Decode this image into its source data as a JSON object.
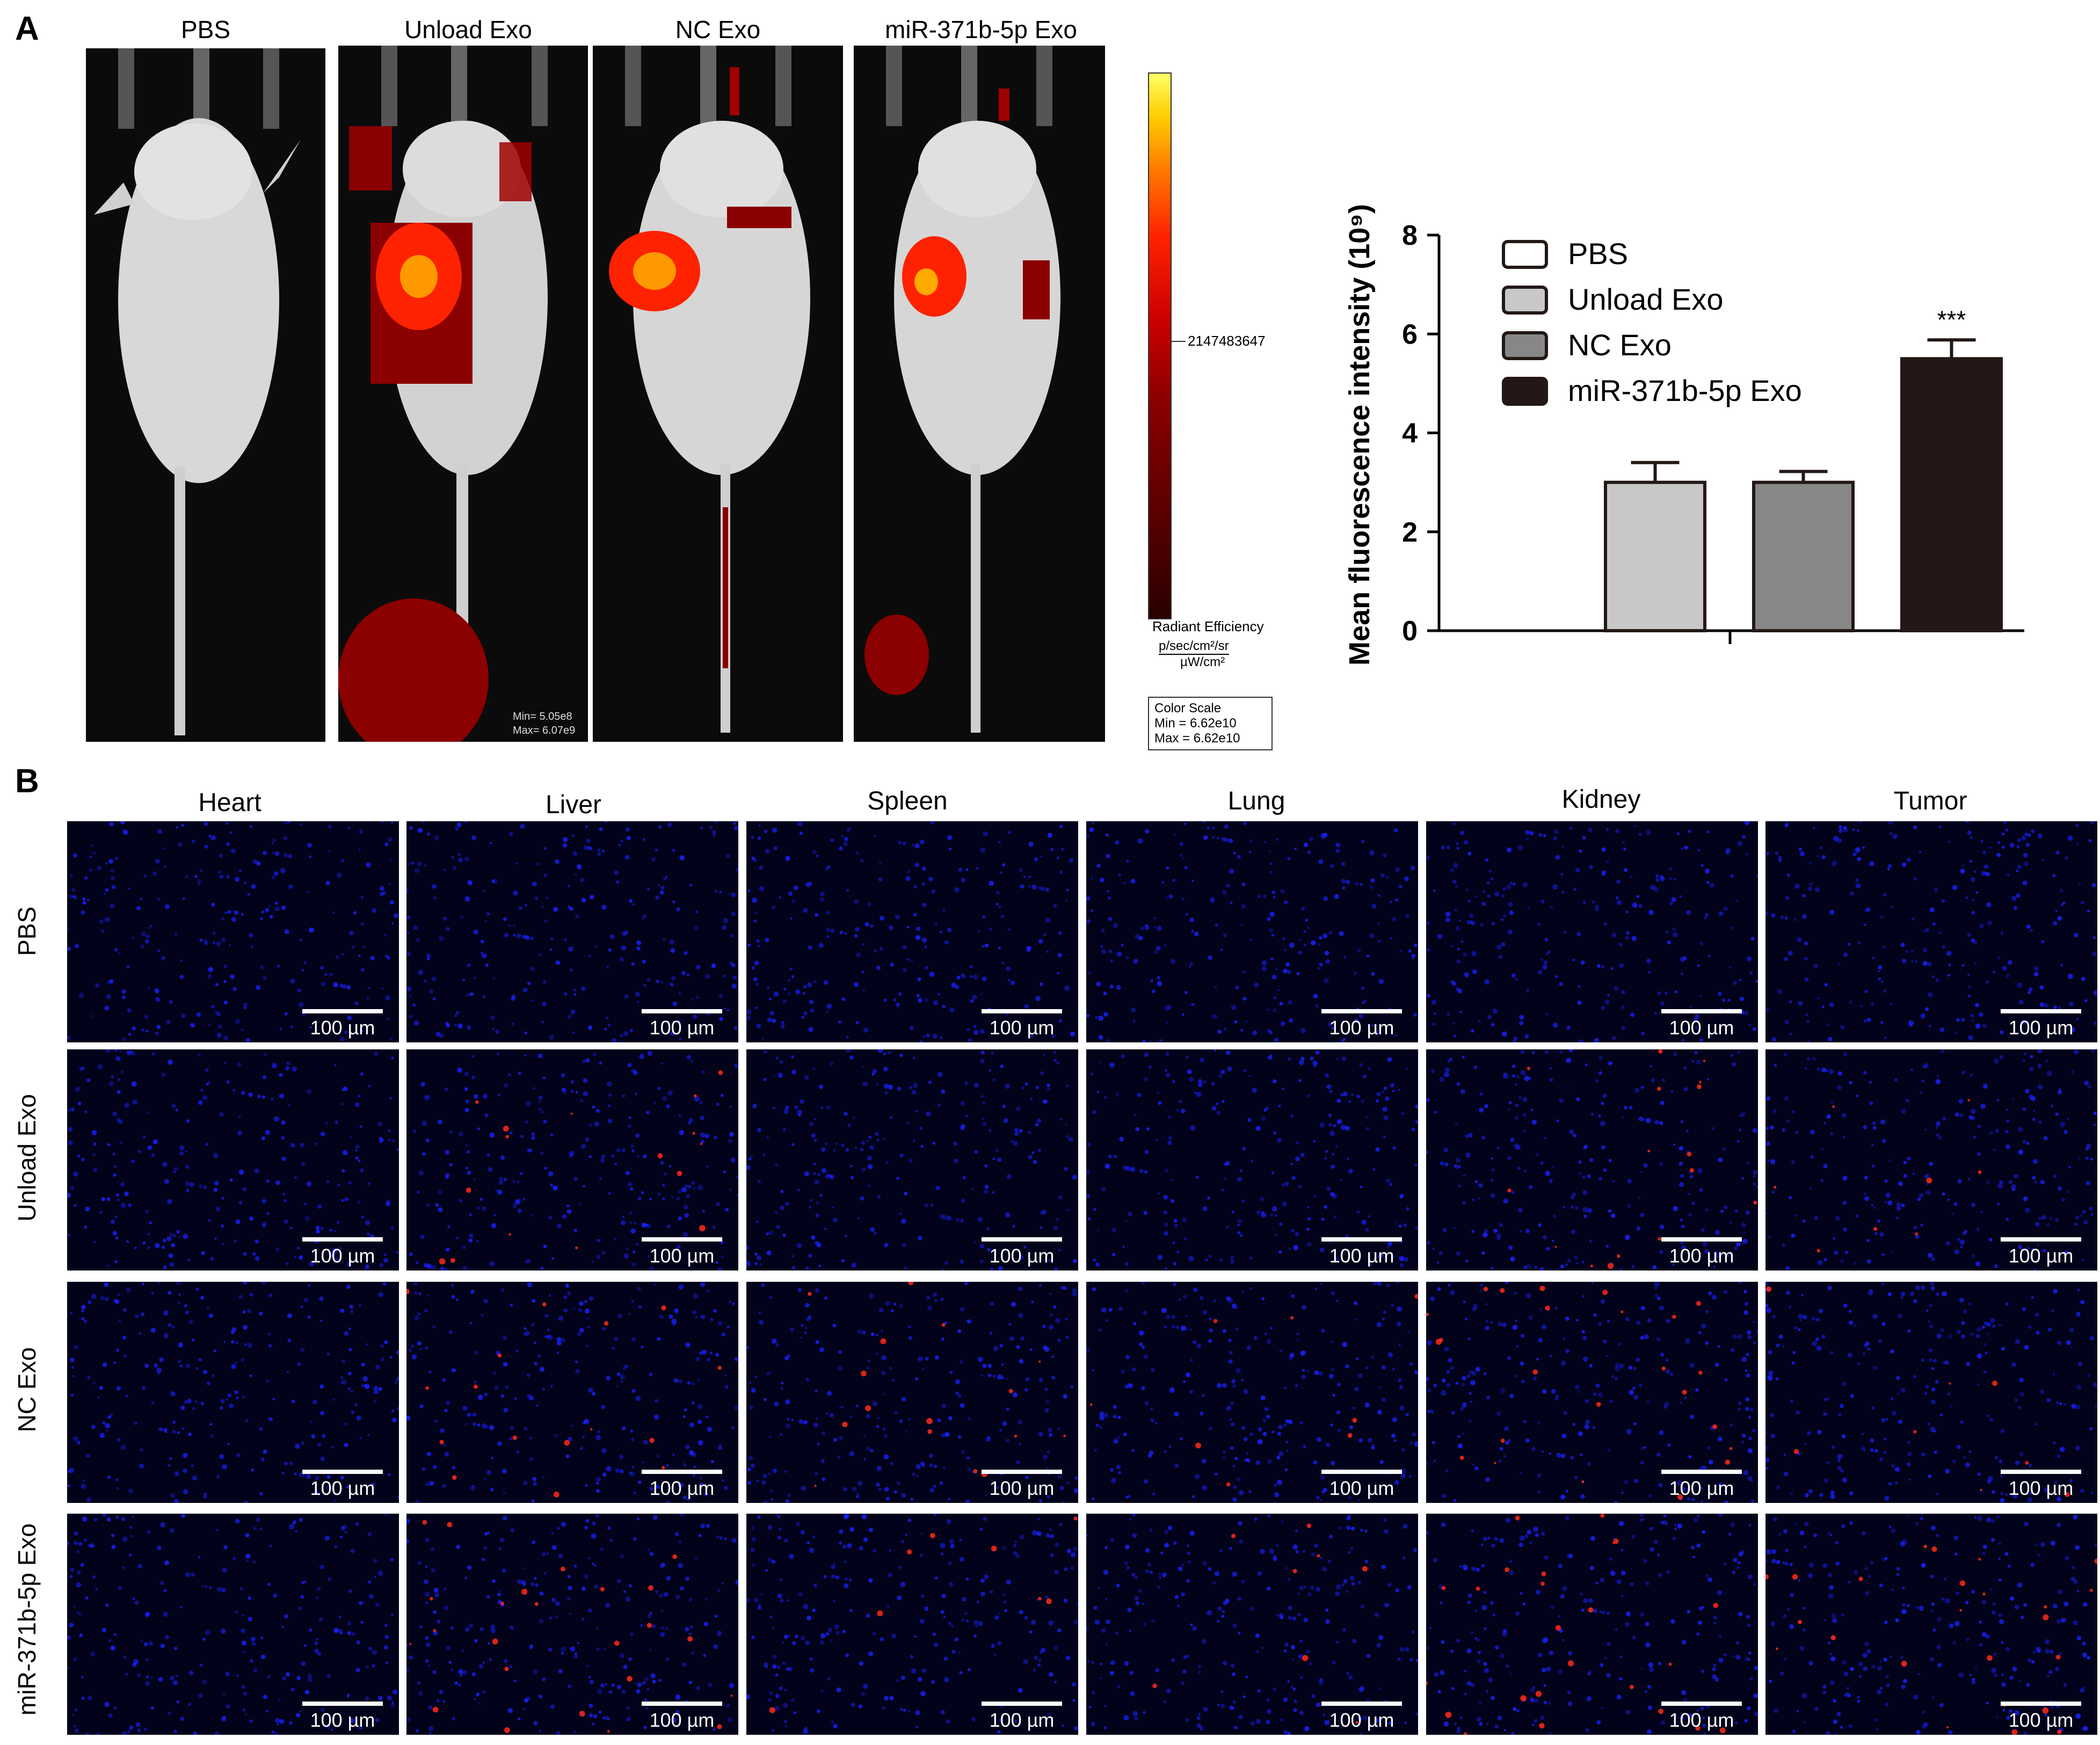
{
  "panels": {
    "a": "A",
    "b": "B"
  },
  "mice": {
    "labels": [
      "PBS",
      "Unload Exo",
      "NC Exo",
      "miR-371b-5p Exo"
    ],
    "min_label": "Min= 5.05e8",
    "max_label": "Max= 6.07e9"
  },
  "colorbar": {
    "tick_value": "2147483647",
    "title": "Radiant Efficiency",
    "unit_numerator": "p/sec/cm²/sr",
    "unit_denominator": "µW/cm²",
    "scale_title": "Color Scale",
    "scale_min": "Min = 6.62e10",
    "scale_max": "Max = 6.62e10",
    "colors": [
      "#2a0000",
      "#8b0000",
      "#ff2200",
      "#ffcc00",
      "#ffff66"
    ]
  },
  "chart_data": {
    "type": "bar",
    "title": "",
    "xlabel": "",
    "ylabel": "Mean fluorescence intensity (10⁹)",
    "ylim": [
      0,
      8
    ],
    "yticks": [
      "0",
      "2",
      "4",
      "6",
      "8"
    ],
    "categories": [
      "PBS",
      "Unload Exo",
      "NC Exo",
      "miR-371b-5p Exo"
    ],
    "values": [
      0,
      3.0,
      3.0,
      5.5
    ],
    "errors": [
      0,
      0.4,
      0.22,
      0.38
    ],
    "colors": [
      "#ffffff",
      "#c8c8c8",
      "#878787",
      "#231816"
    ],
    "significance": [
      "",
      "",
      "",
      "***"
    ],
    "legend": [
      "PBS",
      "Unload Exo",
      "NC Exo",
      "miR-371b-5p Exo"
    ],
    "legend_position": "top-left",
    "grid": false
  },
  "micrographs": {
    "columns": [
      "Heart",
      "Liver",
      "Spleen",
      "Lung",
      "Kidney",
      "Tumor"
    ],
    "rows": [
      "PBS",
      "Unload Exo",
      "NC Exo",
      "miR-371b-5p Exo"
    ],
    "scale_bar": "100 µm",
    "nucleus_color": "#1a22ff",
    "signal_color": "#ff2a1a",
    "signal_levels": [
      [
        0,
        0,
        0,
        0,
        0,
        0
      ],
      [
        0,
        2,
        0,
        0,
        2,
        1
      ],
      [
        0,
        2,
        2,
        1,
        3,
        1
      ],
      [
        0,
        3,
        1,
        1,
        3,
        3
      ]
    ]
  }
}
